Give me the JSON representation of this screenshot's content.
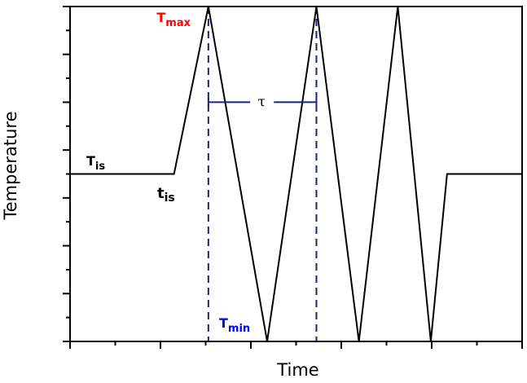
{
  "chart_data": {
    "type": "line",
    "title": "",
    "xlabel": "Time",
    "ylabel": "Temperature",
    "grid": false,
    "legend": null,
    "xlim": [
      0,
      10
    ],
    "ylim": [
      0,
      14
    ],
    "x_ticks": {
      "major": [
        0,
        2,
        4,
        6,
        8,
        10
      ],
      "minor": [
        1,
        3,
        5,
        7,
        9
      ],
      "labels_shown": false
    },
    "y_ticks": {
      "major": [
        0,
        2,
        4,
        6,
        8,
        10,
        12,
        14
      ],
      "minor": [
        1,
        3,
        5,
        7,
        9,
        11,
        13
      ],
      "labels_shown": false
    },
    "series": [
      {
        "name": "temperature-profile",
        "color": "#000000",
        "points": [
          [
            0.0,
            7.0
          ],
          [
            2.3,
            7.0
          ],
          [
            3.06,
            14.0
          ],
          [
            4.36,
            0.0
          ],
          [
            5.45,
            14.0
          ],
          [
            6.39,
            0.0
          ],
          [
            7.25,
            14.0
          ],
          [
            7.98,
            0.0
          ],
          [
            8.34,
            7.0
          ],
          [
            10.0,
            7.0
          ]
        ]
      }
    ],
    "reference_lines": [
      {
        "name": "tmax-marker-1",
        "x": 3.06,
        "style": "dashed",
        "color": "#1a237e"
      },
      {
        "name": "tmax-marker-2",
        "x": 5.45,
        "style": "dashed",
        "color": "#1a237e"
      }
    ],
    "period_bracket": {
      "label": "τ",
      "x_start": 3.06,
      "x_end": 5.45,
      "y": 10.0,
      "color": "#1a237e"
    },
    "annotations": [
      {
        "id": "tmax",
        "text": "T",
        "sub": "max",
        "color": "#ff0000",
        "x": 2.3,
        "y": 13.2
      },
      {
        "id": "tmin",
        "text": "T",
        "sub": "min",
        "color": "#0000ff",
        "x": 3.25,
        "y": 0.35
      },
      {
        "id": "tis",
        "text": "T",
        "sub": "is",
        "color": "#000000",
        "x": 0.32,
        "y": 7.35
      },
      {
        "id": "t_is",
        "text": "t",
        "sub": "is",
        "color": "#000000",
        "x": 1.95,
        "y": 5.6
      }
    ]
  },
  "labels": {
    "xlabel": "Time",
    "ylabel": "Temperature",
    "tau": "τ",
    "tmax": {
      "main": "T",
      "sub": "max"
    },
    "tmin": {
      "main": "T",
      "sub": "min"
    },
    "tis": {
      "main": "T",
      "sub": "is"
    },
    "t_is": {
      "main": "t",
      "sub": "is"
    }
  }
}
